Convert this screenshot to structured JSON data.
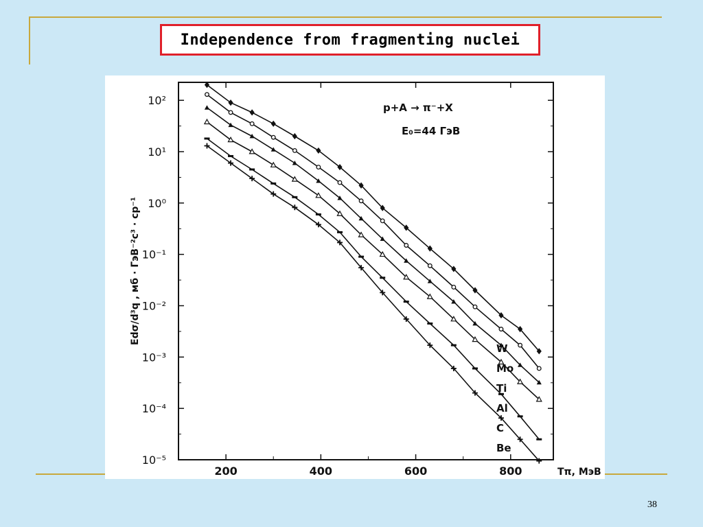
{
  "slide": {
    "title": "Independence from fragmenting nuclei",
    "page_number": "38"
  },
  "chart_data": {
    "type": "scatter",
    "title": "",
    "annotation_reaction": "p+A → π⁻+X",
    "annotation_energy": "E₀=44 ГэВ",
    "xlabel": "Tπ, МэВ",
    "ylabel": "Edσ/d³q , мб · ГэВ⁻²с³ · ср⁻¹",
    "xlim": [
      100,
      890
    ],
    "ylim_log10": [
      -5,
      2.35
    ],
    "log_y": true,
    "x_ticks": [
      "200",
      "400",
      "600",
      "800"
    ],
    "y_ticks": [
      "10²",
      "10¹",
      "10⁰",
      "10⁻¹",
      "10⁻²",
      "10⁻³",
      "10⁻⁴",
      "10⁻⁵"
    ],
    "grid": false,
    "series": [
      {
        "name": "W",
        "marker": "diamond-filled",
        "points": [
          [
            160,
            200
          ],
          [
            210,
            90
          ],
          [
            255,
            58
          ],
          [
            300,
            35
          ],
          [
            345,
            20
          ],
          [
            395,
            10.5
          ],
          [
            440,
            5
          ],
          [
            485,
            2.2
          ],
          [
            530,
            0.8
          ],
          [
            580,
            0.33
          ],
          [
            630,
            0.13
          ],
          [
            680,
            0.052
          ],
          [
            725,
            0.02
          ],
          [
            780,
            0.0065
          ],
          [
            820,
            0.0035
          ],
          [
            860,
            0.0013
          ]
        ]
      },
      {
        "name": "Mo",
        "marker": "circle-open",
        "points": [
          [
            160,
            130
          ],
          [
            210,
            58
          ],
          [
            255,
            35
          ],
          [
            300,
            19
          ],
          [
            345,
            10.5
          ],
          [
            395,
            5
          ],
          [
            440,
            2.5
          ],
          [
            485,
            1.1
          ],
          [
            530,
            0.45
          ],
          [
            580,
            0.15
          ],
          [
            630,
            0.06
          ],
          [
            680,
            0.023
          ],
          [
            725,
            0.0095
          ],
          [
            780,
            0.0035
          ],
          [
            820,
            0.0017
          ],
          [
            860,
            0.0006
          ]
        ]
      },
      {
        "name": "Ti",
        "marker": "triangle-filled",
        "points": [
          [
            160,
            72
          ],
          [
            210,
            33
          ],
          [
            255,
            20
          ],
          [
            300,
            11
          ],
          [
            345,
            6
          ],
          [
            395,
            2.7
          ],
          [
            440,
            1.25
          ],
          [
            485,
            0.5
          ],
          [
            530,
            0.2
          ],
          [
            580,
            0.075
          ],
          [
            630,
            0.03
          ],
          [
            680,
            0.012
          ],
          [
            725,
            0.0045
          ],
          [
            780,
            0.0017
          ],
          [
            820,
            0.0007
          ],
          [
            860,
            0.00032
          ]
        ]
      },
      {
        "name": "Al",
        "marker": "triangle-open",
        "points": [
          [
            160,
            38
          ],
          [
            210,
            17
          ],
          [
            255,
            10
          ],
          [
            300,
            5.5
          ],
          [
            345,
            2.9
          ],
          [
            395,
            1.4
          ],
          [
            440,
            0.62
          ],
          [
            485,
            0.24
          ],
          [
            530,
            0.1
          ],
          [
            580,
            0.036
          ],
          [
            630,
            0.015
          ],
          [
            680,
            0.0055
          ],
          [
            725,
            0.0022
          ],
          [
            780,
            0.0008
          ],
          [
            820,
            0.00033
          ],
          [
            860,
            0.00015
          ]
        ]
      },
      {
        "name": "C",
        "marker": "dash",
        "points": [
          [
            160,
            18
          ],
          [
            210,
            8.2
          ],
          [
            255,
            4.5
          ],
          [
            300,
            2.4
          ],
          [
            345,
            1.3
          ],
          [
            395,
            0.6
          ],
          [
            440,
            0.27
          ],
          [
            485,
            0.09
          ],
          [
            530,
            0.035
          ],
          [
            580,
            0.012
          ],
          [
            630,
            0.0045
          ],
          [
            680,
            0.0017
          ],
          [
            725,
            0.0006
          ],
          [
            780,
            0.00019
          ],
          [
            820,
            7e-05
          ],
          [
            860,
            2.5e-05
          ]
        ]
      },
      {
        "name": "Be",
        "marker": "plus",
        "points": [
          [
            160,
            13
          ],
          [
            210,
            6
          ],
          [
            255,
            3
          ],
          [
            300,
            1.5
          ],
          [
            345,
            0.82
          ],
          [
            395,
            0.38
          ],
          [
            440,
            0.17
          ],
          [
            485,
            0.055
          ],
          [
            530,
            0.018
          ],
          [
            580,
            0.0055
          ],
          [
            630,
            0.0017
          ],
          [
            680,
            0.0006
          ],
          [
            725,
            0.0002
          ],
          [
            780,
            6.5e-05
          ],
          [
            820,
            2.5e-05
          ],
          [
            860,
            9.5e-06
          ]
        ]
      }
    ]
  }
}
